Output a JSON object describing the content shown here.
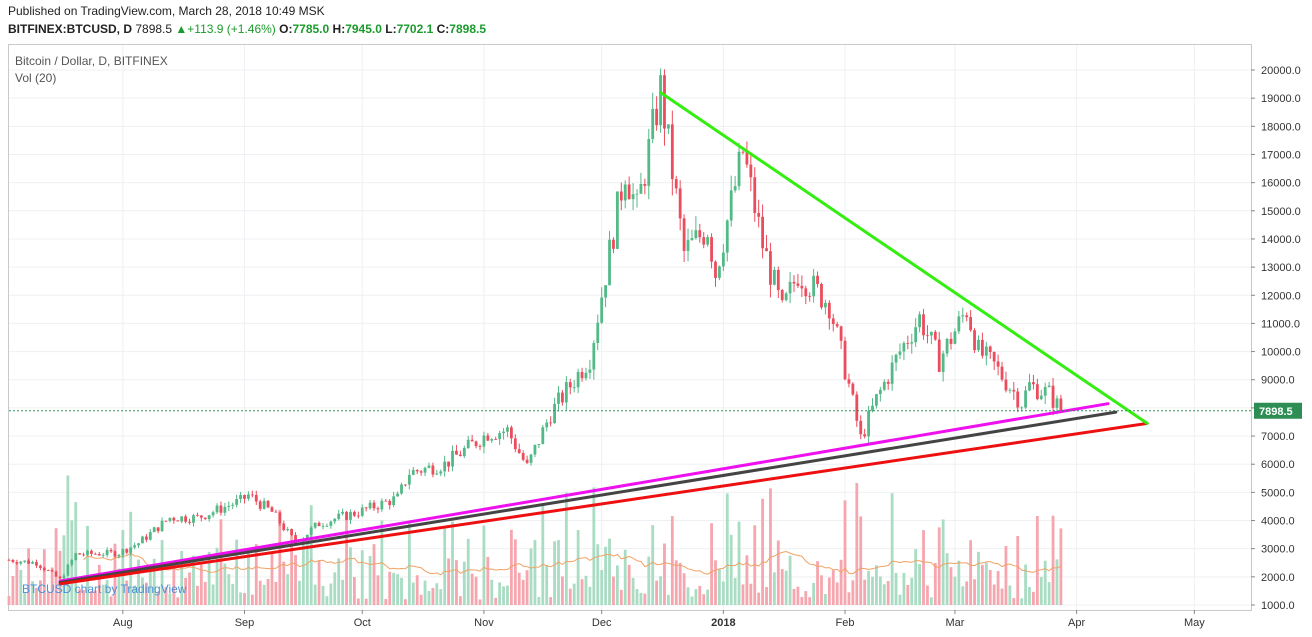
{
  "header": {
    "published": "Published on TradingView.com, March 28, 2018 10:49 MSK",
    "symbol": "BITFINEX:BTCUSD, D",
    "last": "7898.5",
    "change": "+113.9 (+1.46%)",
    "open_label": "O:",
    "open": "7785.0",
    "high_label": "H:",
    "high": "7945.0",
    "low_label": "L:",
    "low": "7702.1",
    "close_label": "C:",
    "close": "7898.5",
    "up_arrow": "▲"
  },
  "legend": {
    "title": "Bitcoin / Dollar, D, BITFINEX",
    "volume": "Vol (20)"
  },
  "watermark": "BTCUSD chart by TradingView",
  "colors": {
    "up": "#53b987",
    "down": "#eb4d5c",
    "vol_up": "#a9dcc3",
    "vol_down": "#f5a6ae",
    "vol_ma": "#f0a263",
    "line_green": "#33ee10",
    "line_magenta": "#ee10ee",
    "line_black": "#444444",
    "line_red": "#ee1010",
    "last_price_line": "#2d8e55",
    "price_tag": "#2d8e55"
  },
  "chart_data": {
    "type": "candlestick",
    "title": "Bitcoin / Dollar, D, BITFINEX",
    "ylim": [
      1000,
      20000
    ],
    "yticks": [
      1000,
      2000,
      3000,
      4000,
      5000,
      6000,
      7000,
      8000,
      9000,
      10000,
      11000,
      12000,
      13000,
      14000,
      15000,
      16000,
      17000,
      18000,
      19000,
      20000
    ],
    "ytick_labels": [
      "1000.0",
      "2000.0",
      "3000.0",
      "4000.0",
      "5000.0",
      "6000.0",
      "7000.0",
      "8000.0",
      "9000.0",
      "10000.0",
      "11000.0",
      "12000.0",
      "13000.0",
      "14000.0",
      "15000.0",
      "16000.0",
      "17000.0",
      "18000.0",
      "19000.0",
      "20000.0"
    ],
    "xlim": [
      "2018-07-03",
      "2018-05-15"
    ],
    "x_ticks": [
      {
        "date": "2017-08-01",
        "label": "Aug"
      },
      {
        "date": "2017-09-01",
        "label": "Sep"
      },
      {
        "date": "2017-10-01",
        "label": "Oct"
      },
      {
        "date": "2017-11-01",
        "label": "Nov"
      },
      {
        "date": "2017-12-01",
        "label": "Dec"
      },
      {
        "date": "2018-01-01",
        "label": "2018"
      },
      {
        "date": "2018-02-01",
        "label": "Feb"
      },
      {
        "date": "2018-03-01",
        "label": "Mar"
      },
      {
        "date": "2018-04-01",
        "label": "Apr"
      },
      {
        "date": "2018-05-01",
        "label": "May"
      }
    ],
    "last_price": 7898.5,
    "last_price_label": "7898.5",
    "grid": true,
    "price_path": [
      {
        "date": "2017-07-03",
        "close": 2600
      },
      {
        "date": "2017-07-10",
        "close": 2500
      },
      {
        "date": "2017-07-16",
        "close": 1900
      },
      {
        "date": "2017-07-20",
        "close": 2800
      },
      {
        "date": "2017-07-31",
        "close": 2850
      },
      {
        "date": "2017-08-05",
        "close": 3200
      },
      {
        "date": "2017-08-13",
        "close": 4100
      },
      {
        "date": "2017-08-20",
        "close": 4100
      },
      {
        "date": "2017-08-31",
        "close": 4700
      },
      {
        "date": "2017-09-02",
        "close": 4900
      },
      {
        "date": "2017-09-08",
        "close": 4300
      },
      {
        "date": "2017-09-14",
        "close": 3200
      },
      {
        "date": "2017-09-20",
        "close": 3900
      },
      {
        "date": "2017-09-30",
        "close": 4300
      },
      {
        "date": "2017-10-10",
        "close": 4800
      },
      {
        "date": "2017-10-13",
        "close": 5700
      },
      {
        "date": "2017-10-22",
        "close": 6000
      },
      {
        "date": "2017-11-02",
        "close": 7100
      },
      {
        "date": "2017-11-07",
        "close": 7200
      },
      {
        "date": "2017-11-12",
        "close": 5900
      },
      {
        "date": "2017-11-18",
        "close": 7800
      },
      {
        "date": "2017-11-28",
        "close": 9800
      },
      {
        "date": "2017-12-07",
        "close": 16500
      },
      {
        "date": "2017-12-10",
        "close": 15000
      },
      {
        "date": "2017-12-16",
        "close": 19300
      },
      {
        "date": "2017-12-22",
        "close": 13500
      },
      {
        "date": "2017-12-28",
        "close": 14400
      },
      {
        "date": "2017-12-30",
        "close": 12800
      },
      {
        "date": "2018-01-06",
        "close": 17100
      },
      {
        "date": "2018-01-11",
        "close": 13800
      },
      {
        "date": "2018-01-16",
        "close": 11400
      },
      {
        "date": "2018-01-20",
        "close": 12800
      },
      {
        "date": "2018-01-28",
        "close": 11700
      },
      {
        "date": "2018-02-02",
        "close": 8800
      },
      {
        "date": "2018-02-05",
        "close": 6900
      },
      {
        "date": "2018-02-09",
        "close": 8300
      },
      {
        "date": "2018-02-15",
        "close": 10000
      },
      {
        "date": "2018-02-20",
        "close": 11200
      },
      {
        "date": "2018-02-25",
        "close": 9700
      },
      {
        "date": "2018-03-04",
        "close": 11500
      },
      {
        "date": "2018-03-07",
        "close": 10000
      },
      {
        "date": "2018-03-11",
        "close": 9500
      },
      {
        "date": "2018-03-18",
        "close": 8200
      },
      {
        "date": "2018-03-20",
        "close": 8800
      },
      {
        "date": "2018-03-25",
        "close": 8500
      },
      {
        "date": "2018-03-28",
        "close": 7898.5
      }
    ]
  }
}
